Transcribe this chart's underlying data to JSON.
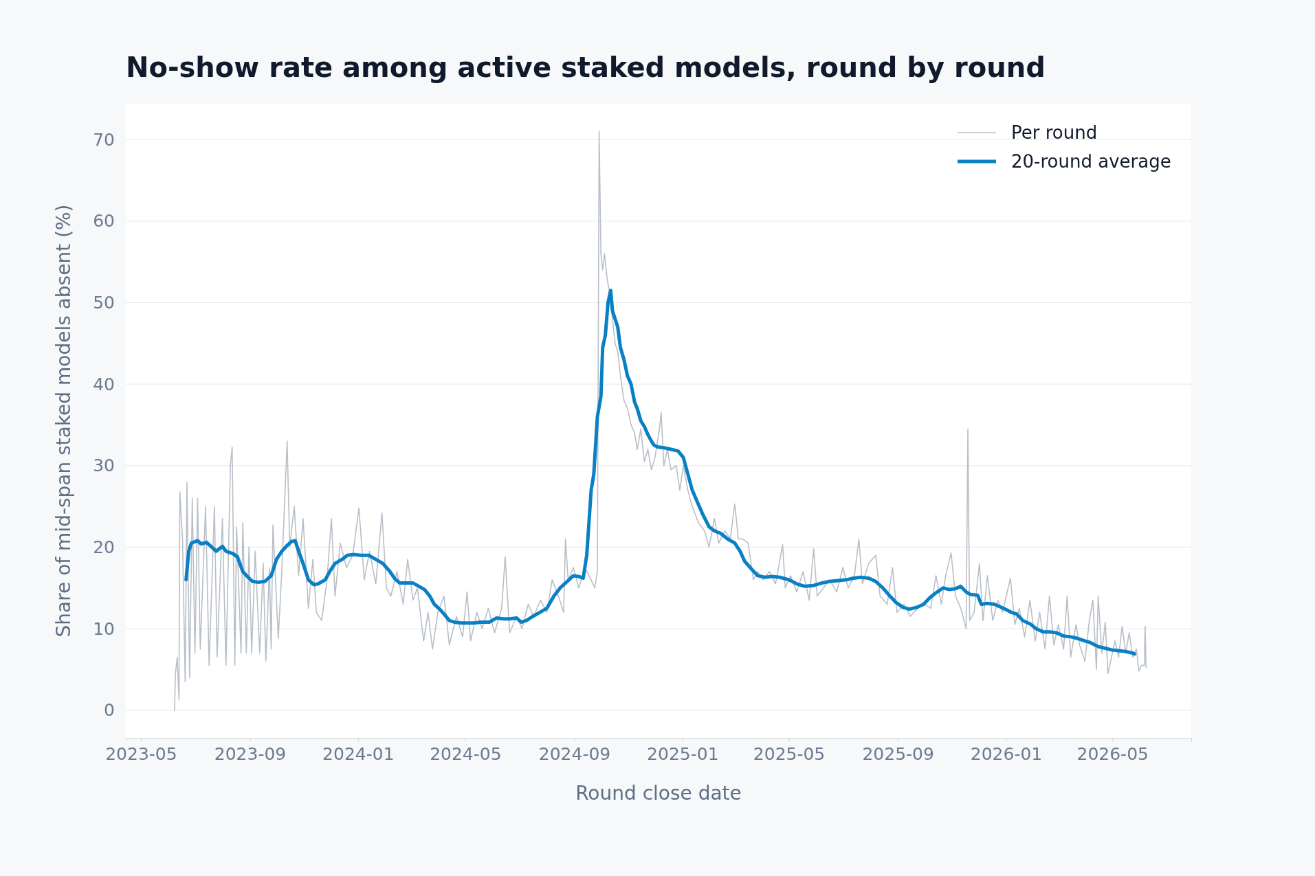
{
  "chart_data": {
    "type": "line",
    "title": "No-show rate among active staked models, round by round",
    "xlabel": "Round close date",
    "ylabel": "Share of mid-span staked models absent (%)",
    "xlim": [
      "2023-04-14",
      "2026-07-29"
    ],
    "ylim": [
      -3.4,
      74.4
    ],
    "xticks": [
      "2023-05",
      "2023-09",
      "2024-01",
      "2024-05",
      "2024-09",
      "2025-01",
      "2025-05",
      "2025-09",
      "2026-01",
      "2026-05"
    ],
    "yticks": [
      0,
      10,
      20,
      30,
      40,
      50,
      60,
      70
    ],
    "grid": "y",
    "legend": "top right",
    "marker": "none",
    "line_style": "solid",
    "series": [
      {
        "name": "Per round",
        "color": "#b8bfc8",
        "x": [
          "2023-06-08",
          "2023-06-09",
          "2023-06-11",
          "2023-06-13",
          "2023-06-14",
          "2023-06-17",
          "2023-06-20",
          "2023-06-22",
          "2023-06-25",
          "2023-06-28",
          "2023-07-01",
          "2023-07-04",
          "2023-07-07",
          "2023-07-13",
          "2023-07-17",
          "2023-07-23",
          "2023-07-26",
          "2023-08-01",
          "2023-08-05",
          "2023-08-10",
          "2023-08-12",
          "2023-08-15",
          "2023-08-17",
          "2023-08-22",
          "2023-08-24",
          "2023-08-28",
          "2023-08-31",
          "2023-09-03",
          "2023-09-07",
          "2023-09-12",
          "2023-09-16",
          "2023-09-19",
          "2023-09-23",
          "2023-09-25",
          "2023-09-27",
          "2023-10-03",
          "2023-10-07",
          "2023-10-13",
          "2023-10-16",
          "2023-10-21",
          "2023-10-26",
          "2023-10-31",
          "2023-11-06",
          "2023-11-11",
          "2023-11-15",
          "2023-11-21",
          "2023-11-27",
          "2023-12-02",
          "2023-12-06",
          "2023-12-12",
          "2023-12-19",
          "2023-12-26",
          "2024-01-02",
          "2024-01-08",
          "2024-01-14",
          "2024-01-21",
          "2024-01-28",
          "2024-02-02",
          "2024-02-07",
          "2024-02-14",
          "2024-02-21",
          "2024-02-26",
          "2024-03-03",
          "2024-03-08",
          "2024-03-15",
          "2024-03-20",
          "2024-03-25",
          "2024-03-31",
          "2024-04-07",
          "2024-04-13",
          "2024-04-21",
          "2024-04-28",
          "2024-05-03",
          "2024-05-07",
          "2024-05-14",
          "2024-05-20",
          "2024-05-27",
          "2024-06-03",
          "2024-06-11",
          "2024-06-15",
          "2024-06-20",
          "2024-06-28",
          "2024-07-04",
          "2024-07-11",
          "2024-07-17",
          "2024-07-25",
          "2024-08-01",
          "2024-08-07",
          "2024-08-14",
          "2024-08-20",
          "2024-08-22",
          "2024-08-25",
          "2024-08-31",
          "2024-09-06",
          "2024-09-13",
          "2024-09-20",
          "2024-09-24",
          "2024-09-27",
          "2024-09-29",
          "2024-10-01",
          "2024-10-03",
          "2024-10-05",
          "2024-10-08",
          "2024-10-11",
          "2024-10-14",
          "2024-10-17",
          "2024-10-20",
          "2024-10-23",
          "2024-10-27",
          "2024-10-31",
          "2024-11-04",
          "2024-11-08",
          "2024-11-11",
          "2024-11-15",
          "2024-11-19",
          "2024-11-23",
          "2024-11-27",
          "2024-12-01",
          "2024-12-06",
          "2024-12-08",
          "2024-12-11",
          "2024-12-15",
          "2024-12-19",
          "2024-12-25",
          "2024-12-29",
          "2025-01-02",
          "2025-01-07",
          "2025-01-12",
          "2025-01-19",
          "2025-01-26",
          "2025-01-31",
          "2025-02-06",
          "2025-02-11",
          "2025-02-18",
          "2025-02-24",
          "2025-03-01",
          "2025-03-05",
          "2025-03-10",
          "2025-03-16",
          "2025-03-22",
          "2025-03-27",
          "2025-04-02",
          "2025-04-09",
          "2025-04-16",
          "2025-04-24",
          "2025-04-27",
          "2025-05-03",
          "2025-05-10",
          "2025-05-17",
          "2025-05-24",
          "2025-05-29",
          "2025-06-02",
          "2025-06-09",
          "2025-06-16",
          "2025-06-24",
          "2025-07-01",
          "2025-07-07",
          "2025-07-14",
          "2025-07-19",
          "2025-07-23",
          "2025-07-30",
          "2025-08-07",
          "2025-08-12",
          "2025-08-20",
          "2025-08-26",
          "2025-08-31",
          "2025-09-08",
          "2025-09-15",
          "2025-09-23",
          "2025-10-01",
          "2025-10-08",
          "2025-10-14",
          "2025-10-20",
          "2025-10-25",
          "2025-10-31",
          "2025-11-05",
          "2025-11-11",
          "2025-11-17",
          "2025-11-19",
          "2025-11-21",
          "2025-11-26",
          "2025-12-02",
          "2025-12-06",
          "2025-12-11",
          "2025-12-17",
          "2025-12-23",
          "2025-12-28",
          "2026-01-06",
          "2026-01-11",
          "2026-01-16",
          "2026-01-22",
          "2026-01-28",
          "2026-02-03",
          "2026-02-08",
          "2026-02-14",
          "2026-02-19",
          "2026-02-24",
          "2026-03-01",
          "2026-03-07",
          "2026-03-11",
          "2026-03-15",
          "2026-03-21",
          "2026-03-25",
          "2026-03-31",
          "2026-04-05",
          "2026-04-09",
          "2026-04-13",
          "2026-04-15",
          "2026-04-19",
          "2026-04-23",
          "2026-04-26",
          "2026-04-30",
          "2026-05-04",
          "2026-05-08",
          "2026-05-12",
          "2026-05-16",
          "2026-05-20",
          "2026-05-24",
          "2026-05-28",
          "2026-05-31",
          "2026-06-03",
          "2026-06-06",
          "2026-06-07",
          "2026-06-08"
        ],
        "values": [
          0,
          4.5,
          6.5,
          1.3,
          26.8,
          21,
          3.5,
          28,
          4,
          26,
          7,
          26,
          7.5,
          25,
          5.5,
          25,
          6.5,
          23.5,
          5.5,
          30,
          32.3,
          5.5,
          22.5,
          7,
          23,
          7,
          20,
          7,
          19.5,
          7,
          18,
          6,
          17.5,
          7.5,
          22.7,
          8.8,
          17,
          33,
          20,
          25,
          16.5,
          23.5,
          12.5,
          18.5,
          12,
          11,
          16,
          23.5,
          14,
          20.5,
          17.5,
          19,
          24.8,
          16,
          19.5,
          15.5,
          24.2,
          15,
          14,
          17,
          13,
          18.5,
          13.5,
          15,
          8.5,
          12,
          7.5,
          12,
          14,
          8,
          11.5,
          9,
          14.5,
          8.5,
          12,
          10,
          12.5,
          9.5,
          12.5,
          18.8,
          9.5,
          11.5,
          10,
          13,
          11.5,
          13.5,
          12,
          16,
          14,
          12,
          21,
          16,
          17.5,
          15,
          17.5,
          16,
          15,
          17,
          71,
          56,
          54,
          56,
          53,
          51,
          48,
          45,
          44,
          41,
          38,
          37,
          35,
          34,
          32,
          34.5,
          30.5,
          32,
          29.5,
          31,
          34.5,
          36.5,
          30,
          32,
          29.5,
          30,
          27,
          30,
          27,
          25,
          23,
          22,
          20,
          23.5,
          20.5,
          22,
          21,
          25.3,
          21,
          21,
          20.5,
          16,
          17,
          16,
          17,
          15.5,
          20.3,
          15,
          16.5,
          14.5,
          17,
          13.5,
          19.8,
          14,
          15,
          16,
          14.5,
          17.5,
          15,
          16.5,
          21,
          15.5,
          18,
          19,
          14,
          13,
          17.5,
          12,
          13,
          11.5,
          12.5,
          13,
          12.5,
          16.5,
          13,
          16.5,
          19.3,
          14,
          12.5,
          10,
          34.5,
          11,
          12,
          18,
          11,
          16.5,
          11,
          13.5,
          12,
          16.2,
          10.5,
          12.5,
          9,
          13.5,
          8.5,
          12,
          7.5,
          14,
          8,
          10.5,
          7.5,
          14,
          6.5,
          10.5,
          8,
          6,
          11,
          13.5,
          5,
          14,
          7,
          10.8,
          4.5,
          6.5,
          8.5,
          6.5,
          10.3,
          7,
          9.5,
          6.5,
          7.5,
          4.8,
          5.5,
          5.5,
          10.3,
          5.2
        ]
      },
      {
        "name": "20-round average",
        "color": "#0a80c4",
        "x": [
          "2023-06-21",
          "2023-06-24",
          "2023-06-27",
          "2023-07-04",
          "2023-07-08",
          "2023-07-14",
          "2023-07-20",
          "2023-07-25",
          "2023-08-01",
          "2023-08-05",
          "2023-08-13",
          "2023-08-18",
          "2023-08-24",
          "2023-08-30",
          "2023-09-04",
          "2023-09-10",
          "2023-09-18",
          "2023-09-25",
          "2023-10-01",
          "2023-10-07",
          "2023-10-12",
          "2023-10-18",
          "2023-10-22",
          "2023-10-26",
          "2023-10-31",
          "2023-11-06",
          "2023-11-12",
          "2023-11-17",
          "2023-11-25",
          "2023-11-30",
          "2023-12-06",
          "2023-12-14",
          "2023-12-20",
          "2023-12-27",
          "2024-01-04",
          "2024-01-13",
          "2024-01-21",
          "2024-01-29",
          "2024-02-06",
          "2024-02-11",
          "2024-02-17",
          "2024-02-24",
          "2024-03-03",
          "2024-03-08",
          "2024-03-16",
          "2024-03-22",
          "2024-03-27",
          "2024-04-02",
          "2024-04-07",
          "2024-04-13",
          "2024-04-19",
          "2024-04-26",
          "2024-05-04",
          "2024-05-11",
          "2024-05-19",
          "2024-05-28",
          "2024-06-05",
          "2024-06-13",
          "2024-06-20",
          "2024-06-28",
          "2024-07-03",
          "2024-07-09",
          "2024-07-16",
          "2024-07-24",
          "2024-08-01",
          "2024-08-09",
          "2024-08-16",
          "2024-08-24",
          "2024-08-31",
          "2024-09-06",
          "2024-09-11",
          "2024-09-15",
          "2024-09-20",
          "2024-09-23",
          "2024-09-27",
          "2024-10-01",
          "2024-10-03",
          "2024-10-06",
          "2024-10-09",
          "2024-10-12",
          "2024-10-14",
          "2024-10-17",
          "2024-10-20",
          "2024-10-23",
          "2024-10-27",
          "2024-10-31",
          "2024-11-04",
          "2024-11-08",
          "2024-11-11",
          "2024-11-15",
          "2024-11-19",
          "2024-11-23",
          "2024-11-27",
          "2024-11-30",
          "2024-12-04",
          "2024-12-11",
          "2024-12-19",
          "2024-12-27",
          "2025-01-02",
          "2025-01-07",
          "2025-01-12",
          "2025-01-18",
          "2025-01-24",
          "2025-01-31",
          "2025-02-06",
          "2025-02-13",
          "2025-02-21",
          "2025-03-01",
          "2025-03-07",
          "2025-03-12",
          "2025-03-20",
          "2025-03-27",
          "2025-04-04",
          "2025-04-12",
          "2025-04-21",
          "2025-05-01",
          "2025-05-10",
          "2025-05-19",
          "2025-05-29",
          "2025-06-07",
          "2025-06-16",
          "2025-06-26",
          "2025-07-05",
          "2025-07-13",
          "2025-07-21",
          "2025-07-30",
          "2025-08-07",
          "2025-08-15",
          "2025-08-23",
          "2025-08-30",
          "2025-09-07",
          "2025-09-14",
          "2025-09-22",
          "2025-09-30",
          "2025-10-07",
          "2025-10-14",
          "2025-10-22",
          "2025-10-29",
          "2025-11-05",
          "2025-11-11",
          "2025-11-17",
          "2025-11-22",
          "2025-11-30",
          "2025-12-04",
          "2025-12-11",
          "2025-12-19",
          "2025-12-25",
          "2025-12-31",
          "2026-01-07",
          "2026-01-13",
          "2026-01-20",
          "2026-01-28",
          "2026-02-04",
          "2026-02-12",
          "2026-02-19",
          "2026-02-27",
          "2026-03-07",
          "2026-03-15",
          "2026-03-23",
          "2026-03-31",
          "2026-04-06",
          "2026-04-15",
          "2026-04-23",
          "2026-04-30",
          "2026-05-08",
          "2026-05-16",
          "2026-05-24",
          "2026-05-26"
        ],
        "values": [
          16,
          19.5,
          20.5,
          20.8,
          20.4,
          20.6,
          20,
          19.5,
          20.1,
          19.5,
          19.2,
          18.8,
          17,
          16.3,
          15.8,
          15.7,
          15.8,
          16.5,
          18.5,
          19.5,
          20.1,
          20.7,
          20.8,
          19.5,
          18,
          16,
          15.4,
          15.5,
          16,
          17,
          18,
          18.5,
          19,
          19.1,
          19,
          19,
          18.5,
          18,
          17,
          16.2,
          15.6,
          15.6,
          15.6,
          15.3,
          14.8,
          14,
          13,
          12.4,
          11.8,
          11,
          10.8,
          10.7,
          10.7,
          10.7,
          10.8,
          10.8,
          11.3,
          11.2,
          11.2,
          11.3,
          10.8,
          11,
          11.5,
          12,
          12.5,
          14,
          15,
          15.8,
          16.5,
          16.4,
          16.2,
          19,
          27,
          29,
          36,
          38.5,
          44.5,
          46,
          50,
          51.5,
          49,
          48,
          47,
          44.5,
          43,
          41,
          40,
          37.8,
          37,
          35.5,
          34.8,
          33.8,
          33,
          32.5,
          32.3,
          32.2,
          32,
          31.8,
          31,
          29,
          27,
          25.5,
          24,
          22.5,
          22,
          21.7,
          21,
          20.5,
          19.5,
          18.3,
          17.3,
          16.5,
          16.3,
          16.4,
          16.3,
          16,
          15.5,
          15.2,
          15.3,
          15.6,
          15.8,
          15.9,
          16,
          16.2,
          16.3,
          16.2,
          15.8,
          15,
          14,
          13.2,
          12.6,
          12.4,
          12.6,
          13,
          13.8,
          14.4,
          15,
          14.8,
          14.9,
          15.2,
          14.5,
          14.2,
          14.1,
          13,
          13.1,
          13,
          12.7,
          12.4,
          12,
          11.8,
          11,
          10.6,
          10,
          9.6,
          9.6,
          9.5,
          9.1,
          9,
          8.8,
          8.5,
          8.3,
          7.8,
          7.6,
          7.4,
          7.3,
          7.2,
          7,
          6.9
        ]
      }
    ]
  }
}
